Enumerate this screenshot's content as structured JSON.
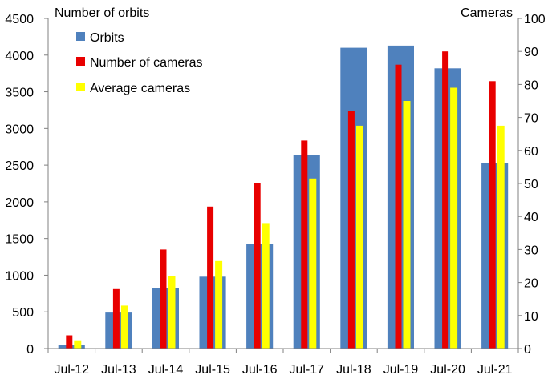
{
  "chart_data": {
    "type": "bar",
    "categories": [
      "Jul-12",
      "Jul-13",
      "Jul-14",
      "Jul-15",
      "Jul-16",
      "Jul-17",
      "Jul-18",
      "Jul-19",
      "Jul-20",
      "Jul-21"
    ],
    "left_axis": {
      "label": "Number of orbits",
      "ylim": [
        0,
        4500
      ],
      "ticks": [
        0,
        500,
        1000,
        1500,
        2000,
        2500,
        3000,
        3500,
        4000,
        4500
      ]
    },
    "right_axis": {
      "label": "Cameras",
      "ylim": [
        0,
        100
      ],
      "ticks": [
        0,
        10,
        20,
        30,
        40,
        50,
        60,
        70,
        80,
        90,
        100
      ]
    },
    "series": [
      {
        "name": "Orbits",
        "axis": "left",
        "color": "#4F81BD",
        "values": [
          50,
          490,
          830,
          980,
          1420,
          2640,
          4100,
          4130,
          3820,
          2530
        ]
      },
      {
        "name": "Number of cameras",
        "axis": "right",
        "color": "#E80000",
        "values": [
          4,
          18,
          30,
          43,
          50,
          63,
          72,
          86,
          90,
          81
        ]
      },
      {
        "name": "Average cameras",
        "axis": "right",
        "color": "#FFFF00",
        "values": [
          2.5,
          13,
          22,
          26.5,
          38,
          51.5,
          67.5,
          75,
          79,
          67.5
        ]
      }
    ],
    "legend": {
      "placement": "top-left"
    },
    "grid": false
  }
}
